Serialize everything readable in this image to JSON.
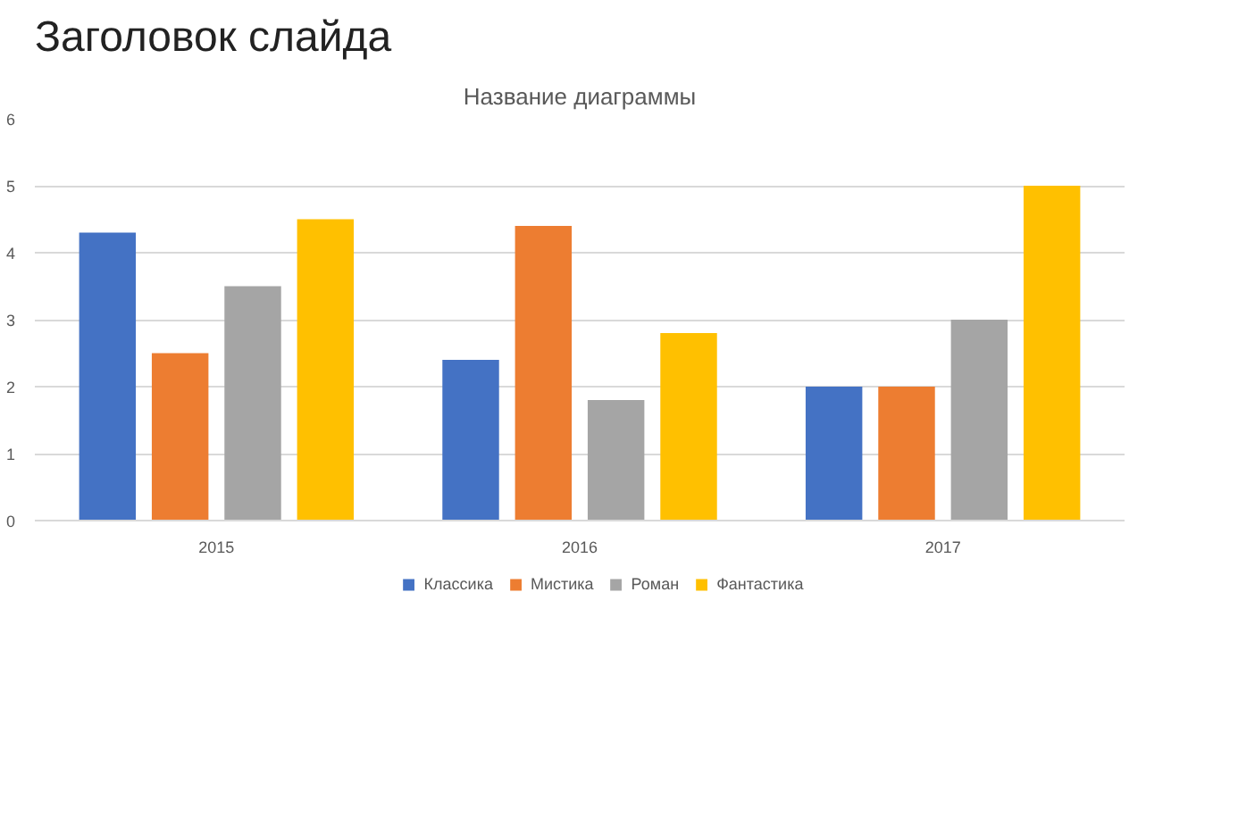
{
  "chart_data": {
    "type": "bar",
    "title": "Название диаграммы",
    "annotations": [
      "Заголовок слайда"
    ],
    "categories": [
      "2015",
      "2016",
      "2017"
    ],
    "series": [
      {
        "name": "Классика",
        "color": "#4472c4",
        "values": [
          4.3,
          2.4,
          2.0
        ]
      },
      {
        "name": "Мистика",
        "color": "#ed7d31",
        "values": [
          2.5,
          4.4,
          2.0
        ]
      },
      {
        "name": "Роман",
        "color": "#a5a5a5",
        "values": [
          3.5,
          1.8,
          3.0
        ]
      },
      {
        "name": "Фантастика",
        "color": "#ffc000",
        "values": [
          4.5,
          2.8,
          5.0
        ]
      }
    ],
    "ylim": [
      0,
      6
    ],
    "yticks": [
      0,
      1,
      2,
      3,
      4,
      5,
      6
    ],
    "grid": "y",
    "legend": "bottom"
  }
}
